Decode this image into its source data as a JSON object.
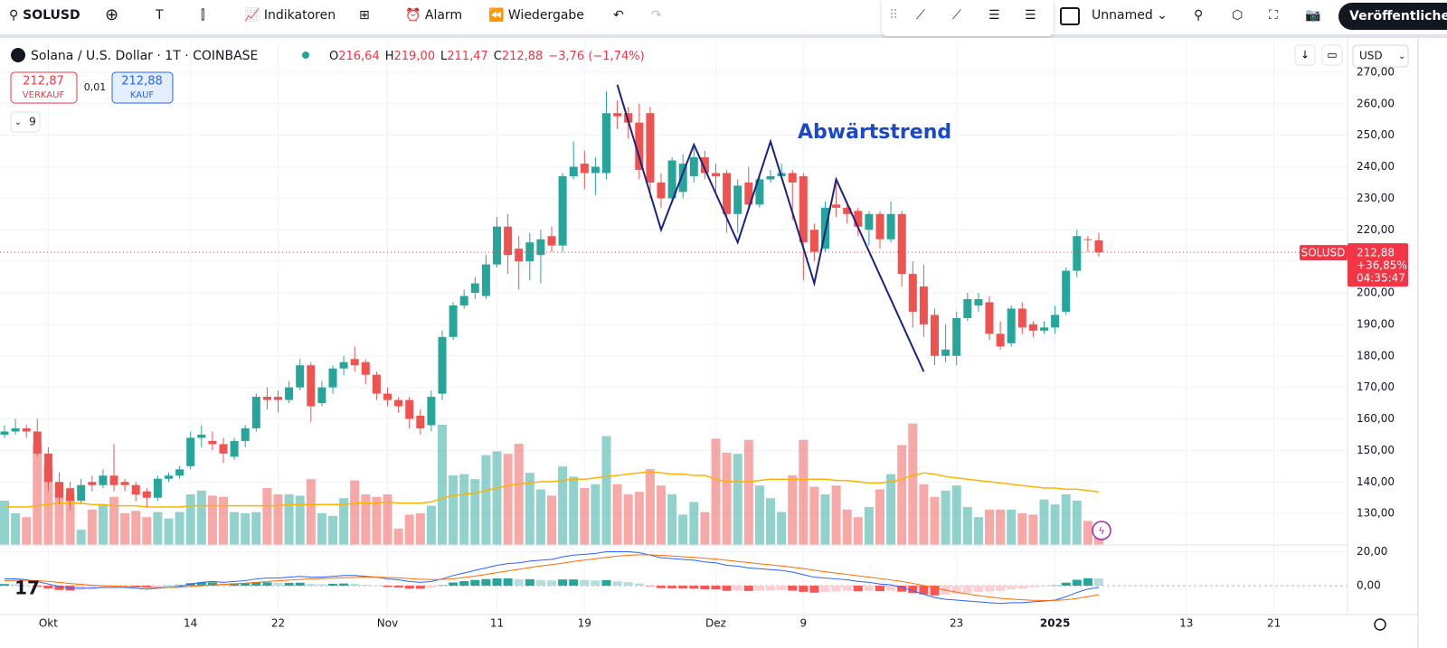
{
  "toolbar": {
    "symbol": "SOLUSD",
    "text_tool": "T",
    "indicators": "Indikatoren",
    "alert": "Alarm",
    "replay": "Wiedergabe",
    "layout_name": "Unnamed",
    "publish": "Veröffentlichen"
  },
  "legend": {
    "symbol_name": "Solana / U.S. Dollar · 1T · COINBASE",
    "o_label": "O",
    "o": "216,64",
    "h_label": "H",
    "h": "219,00",
    "l_label": "L",
    "l": "211,47",
    "c_label": "C",
    "c": "212,88",
    "change": "−3,76 (−1,74%)",
    "sell_price": "212,87",
    "sell": "VERKAUF",
    "spread": "0,01",
    "buy_price": "212,88",
    "buy": "KAUF",
    "indicators_count": "9",
    "currency": "USD"
  },
  "chart_data": {
    "type": "candlestick",
    "x": [
      "2024-09-27",
      "2024-09-28",
      "2024-09-29",
      "2024-09-30",
      "2024-10-01",
      "2024-10-02",
      "2024-10-03",
      "2024-10-04",
      "2024-10-05",
      "2024-10-06",
      "2024-10-07",
      "2024-10-08",
      "2024-10-09",
      "2024-10-10",
      "2024-10-11",
      "2024-10-12",
      "2024-10-13",
      "2024-10-14",
      "2024-10-15",
      "2024-10-16",
      "2024-10-17",
      "2024-10-18",
      "2024-10-19",
      "2024-10-20",
      "2024-10-21",
      "2024-10-22",
      "2024-10-23",
      "2024-10-24",
      "2024-10-25",
      "2024-10-26",
      "2024-10-27",
      "2024-10-28",
      "2024-10-29",
      "2024-10-30",
      "2024-10-31",
      "2024-11-01",
      "2024-11-02",
      "2024-11-03",
      "2024-11-04",
      "2024-11-05",
      "2024-11-06",
      "2024-11-07",
      "2024-11-08",
      "2024-11-09",
      "2024-11-10",
      "2024-11-11",
      "2024-11-12",
      "2024-11-13",
      "2024-11-14",
      "2024-11-15",
      "2024-11-16",
      "2024-11-17",
      "2024-11-18",
      "2024-11-19",
      "2024-11-20",
      "2024-11-21",
      "2024-11-22",
      "2024-11-23",
      "2024-11-24",
      "2024-11-25",
      "2024-11-26",
      "2024-11-27",
      "2024-11-28",
      "2024-11-29",
      "2024-11-30",
      "2024-12-01",
      "2024-12-02",
      "2024-12-03",
      "2024-12-04",
      "2024-12-05",
      "2024-12-06",
      "2024-12-07",
      "2024-12-08",
      "2024-12-09",
      "2024-12-10",
      "2024-12-11",
      "2024-12-12",
      "2024-12-13",
      "2024-12-14",
      "2024-12-15",
      "2024-12-16",
      "2024-12-17",
      "2024-12-18",
      "2024-12-19",
      "2024-12-20",
      "2024-12-21",
      "2024-12-22",
      "2024-12-23",
      "2024-12-24",
      "2024-12-25",
      "2024-12-26",
      "2024-12-27",
      "2024-12-28",
      "2024-12-29",
      "2024-12-30",
      "2024-12-31",
      "2025-01-01",
      "2025-01-02",
      "2025-01-03",
      "2025-01-04",
      "2025-01-05"
    ],
    "open": [
      155,
      156,
      157,
      156,
      149,
      140,
      138,
      134,
      140,
      139,
      142,
      140,
      139,
      137,
      135,
      141,
      142,
      145,
      154,
      153,
      152,
      148,
      153,
      157,
      167,
      167,
      166,
      170,
      177,
      165,
      170,
      176,
      179,
      178,
      174,
      168,
      166,
      166,
      161,
      158,
      168,
      186,
      196,
      200,
      199,
      209,
      221,
      214,
      210,
      212,
      218,
      215,
      237,
      241,
      238,
      238,
      257,
      257,
      254,
      257,
      235,
      230,
      232,
      237,
      243,
      238,
      238,
      225,
      235,
      228,
      236,
      237,
      238,
      237,
      220,
      214,
      228,
      227,
      226,
      220,
      225,
      217,
      225,
      206,
      202,
      193,
      180,
      180,
      192,
      196,
      197,
      187,
      184,
      195,
      190,
      188,
      189,
      194,
      207,
      217,
      216.64
    ],
    "high": [
      158,
      160,
      158,
      160,
      151,
      143,
      140,
      141,
      142,
      144,
      152,
      141,
      140,
      138,
      142,
      143,
      145,
      156,
      158,
      156,
      154,
      154,
      158,
      168,
      170,
      169,
      172,
      179,
      178,
      172,
      177,
      180,
      183,
      179,
      175,
      170,
      167,
      167,
      163,
      169,
      188,
      197,
      201,
      205,
      212,
      224,
      225,
      218,
      219,
      220,
      221,
      238,
      248,
      245,
      243,
      264,
      261,
      259,
      260,
      259,
      238,
      243,
      244,
      246,
      245,
      241,
      239,
      236,
      240,
      238,
      239,
      241,
      239,
      238,
      222,
      229,
      235,
      228,
      227,
      226,
      226,
      229,
      226,
      210,
      209,
      195,
      190,
      194,
      200,
      200,
      199,
      191,
      196,
      197,
      191,
      191,
      196,
      208,
      220,
      218,
      219
    ],
    "low": [
      154,
      155,
      154,
      148,
      137,
      133,
      131,
      133,
      137,
      138,
      137,
      137,
      134,
      132,
      134,
      140,
      141,
      144,
      151,
      150,
      146,
      147,
      151,
      156,
      163,
      162,
      165,
      169,
      159,
      164,
      168,
      174,
      175,
      171,
      166,
      164,
      162,
      157,
      155,
      156,
      166,
      185,
      195,
      198,
      198,
      208,
      206,
      201,
      204,
      203,
      213,
      213,
      236,
      233,
      231,
      236,
      252,
      249,
      236,
      230,
      227,
      229,
      230,
      235,
      236,
      232,
      219,
      219,
      226,
      227,
      235,
      236,
      223,
      204,
      210,
      213,
      224,
      222,
      218,
      215,
      214,
      216,
      202,
      189,
      186,
      177,
      178,
      177,
      191,
      194,
      185,
      182,
      183,
      187,
      186,
      187,
      187,
      193,
      205,
      213,
      211.47
    ],
    "close": [
      156,
      157,
      156,
      149,
      140,
      135,
      134,
      139,
      139,
      142,
      139,
      139,
      136,
      135,
      141,
      142,
      144,
      154,
      155,
      152,
      149,
      153,
      157,
      167,
      166,
      166,
      170,
      177,
      164,
      170,
      176,
      178,
      177,
      174,
      168,
      166,
      164,
      160,
      157,
      167,
      186,
      196,
      199,
      203,
      209,
      221,
      212,
      210,
      216,
      217,
      215,
      237,
      240,
      238,
      240,
      257,
      256,
      254,
      239,
      235,
      230,
      242,
      241,
      243,
      238,
      237,
      225,
      234,
      228,
      236,
      237,
      238,
      235,
      216,
      213,
      227,
      227,
      225,
      221,
      225,
      217,
      225,
      206,
      194,
      190,
      180,
      182,
      192,
      198,
      198,
      187,
      183,
      195,
      189,
      188,
      189,
      193,
      207,
      218,
      217,
      212.88
    ],
    "volume": [
      35,
      25,
      22,
      80,
      62,
      48,
      40,
      12,
      28,
      32,
      38,
      25,
      27,
      22,
      26,
      21,
      26,
      40,
      43,
      39,
      38,
      26,
      25,
      26,
      45,
      40,
      40,
      39,
      52,
      25,
      23,
      37,
      51,
      40,
      38,
      40,
      13,
      24,
      25,
      31,
      95,
      55,
      56,
      52,
      71,
      74,
      72,
      80,
      57,
      44,
      39,
      62,
      54,
      45,
      48,
      86,
      48,
      40,
      42,
      60,
      47,
      40,
      24,
      34,
      26,
      84,
      73,
      72,
      83,
      47,
      37,
      26,
      55,
      83,
      46,
      40,
      47,
      28,
      22,
      30,
      44,
      56,
      79,
      96,
      48,
      38,
      43,
      47,
      30,
      22,
      28,
      28,
      28,
      25,
      24,
      36,
      32,
      40,
      35,
      19,
      17
    ],
    "volume_ma": [
      30,
      30,
      30,
      31,
      32,
      33,
      33,
      33,
      32,
      32,
      31,
      31,
      31,
      30,
      30,
      30,
      30,
      31,
      31,
      31,
      31,
      31,
      31,
      31,
      31,
      31,
      32,
      32,
      32,
      32,
      32,
      32,
      33,
      33,
      33,
      34,
      33,
      33,
      33,
      34,
      37,
      39,
      40,
      41,
      43,
      45,
      47,
      48,
      49,
      50,
      50,
      51,
      52,
      52,
      53,
      54,
      55,
      56,
      57,
      58,
      57,
      56,
      56,
      55,
      55,
      52,
      50,
      50,
      50,
      51,
      52,
      52,
      52,
      52,
      52,
      52,
      51,
      51,
      50,
      49,
      49,
      50,
      52,
      55,
      57,
      56,
      54,
      53,
      52,
      51,
      50,
      49,
      48,
      47,
      46,
      45,
      45,
      44,
      44,
      43,
      42
    ],
    "macd": [
      4,
      4,
      3.5,
      2.5,
      1,
      -0.5,
      -1.5,
      -1.5,
      -1.5,
      -1,
      -1,
      -1,
      -1.5,
      -2,
      -1.5,
      -1,
      -0.5,
      1,
      2,
      2.5,
      2,
      2.5,
      3,
      4,
      4.5,
      4.5,
      5,
      5.5,
      5,
      5,
      5.5,
      6,
      6,
      5.5,
      5,
      4,
      3.5,
      2.5,
      2,
      2.5,
      4,
      6,
      7.5,
      9,
      10.5,
      12,
      13,
      13.5,
      14.5,
      15,
      15.5,
      17,
      18,
      18.5,
      19,
      20,
      20,
      20,
      19.5,
      18,
      16.5,
      16,
      15.5,
      15,
      14,
      13.5,
      12,
      11.5,
      10.5,
      10,
      9.5,
      9,
      8,
      6.5,
      5,
      4.5,
      4,
      3.5,
      2.5,
      2,
      1,
      0.5,
      -1,
      -3,
      -5,
      -7,
      -8,
      -8.5,
      -9,
      -9.5,
      -10,
      -10.5,
      -10,
      -10,
      -9.5,
      -9,
      -8.5,
      -6.5,
      -4,
      -2,
      -1
    ],
    "signal": [
      3,
      3.2,
      3.2,
      3,
      2.6,
      2,
      1.3,
      0.8,
      0.3,
      0,
      -0.2,
      -0.4,
      -0.6,
      -0.9,
      -1,
      -1,
      -0.9,
      -0.5,
      0,
      0.5,
      0.8,
      1.1,
      1.5,
      2,
      2.5,
      2.9,
      3.3,
      3.7,
      4,
      4.2,
      4.4,
      4.7,
      4.9,
      5,
      5,
      4.8,
      4.6,
      4.2,
      3.8,
      3.6,
      3.7,
      4.1,
      4.8,
      5.6,
      6.6,
      7.7,
      8.7,
      9.7,
      10.7,
      11.6,
      12.4,
      13.3,
      14.3,
      15.1,
      15.9,
      16.7,
      17.4,
      17.9,
      18.2,
      18.2,
      17.9,
      17.5,
      17.1,
      16.7,
      16.2,
      15.7,
      15,
      14.3,
      13.6,
      12.9,
      12.3,
      11.6,
      10.9,
      10.1,
      9.1,
      8.2,
      7.4,
      6.6,
      5.8,
      5,
      4.2,
      3.4,
      2.5,
      1.4,
      0.1,
      -1.3,
      -2.6,
      -3.8,
      -4.8,
      -5.8,
      -6.6,
      -7.4,
      -7.9,
      -8.3,
      -8.6,
      -8.7,
      -8.7,
      -8.3,
      -7.5,
      -6.4,
      -5.3
    ],
    "histogram": [
      1,
      0.8,
      0.3,
      -0.5,
      -1.6,
      -2.5,
      -2.8,
      -2.3,
      -1.8,
      -1,
      -0.8,
      -0.6,
      -0.9,
      -1.1,
      -0.5,
      0,
      0.4,
      1.5,
      2,
      2,
      1.2,
      1.4,
      1.5,
      2,
      2,
      1.6,
      1.7,
      1.8,
      1,
      0.8,
      1.1,
      1.3,
      1.1,
      0.5,
      0,
      -0.8,
      -1.1,
      -1.7,
      -1.8,
      -1.1,
      0.3,
      1.9,
      2.7,
      3.4,
      3.9,
      4.3,
      4.3,
      3.8,
      3.8,
      3.4,
      3.1,
      3.7,
      3.7,
      3.4,
      3.1,
      3.3,
      2.6,
      2.1,
      1.3,
      -0.2,
      -1.4,
      -1.5,
      -1.6,
      -1.7,
      -2.2,
      -2.2,
      -3,
      -2.8,
      -3.1,
      -2.9,
      -2.8,
      -2.6,
      -2.9,
      -3.6,
      -4.1,
      -3.7,
      -3.4,
      -3.1,
      -3.3,
      -3,
      -3.2,
      -2.9,
      -3.5,
      -4.4,
      -5.1,
      -5.7,
      -5.4,
      -4.7,
      -4.2,
      -3.7,
      -3.4,
      -3.1,
      -2.1,
      -1.7,
      -0.9,
      -0.3,
      0.2,
      1.8,
      3.5,
      4.4,
      4.3
    ],
    "xlim": [
      "2024-09-26",
      "2025-01-28"
    ],
    "xticks": [
      {
        "value": "2024-10-01",
        "label": "Okt"
      },
      {
        "value": "2024-10-14",
        "label": "14"
      },
      {
        "value": "2024-10-22",
        "label": "22"
      },
      {
        "value": "2024-11-01",
        "label": "Nov"
      },
      {
        "value": "2024-11-11",
        "label": "11"
      },
      {
        "value": "2024-11-19",
        "label": "19"
      },
      {
        "value": "2024-12-01",
        "label": "Dez"
      },
      {
        "value": "2024-12-09",
        "label": "9"
      },
      {
        "value": "2024-12-23",
        "label": "23"
      },
      {
        "value": "2025-01-01",
        "label": "2025"
      },
      {
        "value": "2025-01-13",
        "label": "13"
      },
      {
        "value": "2025-01-21",
        "label": "21"
      }
    ],
    "ylim": [
      120,
      280
    ],
    "yticks": [
      {
        "value": 130,
        "label": "130,00"
      },
      {
        "value": 140,
        "label": "140,00"
      },
      {
        "value": 150,
        "label": "150,00"
      },
      {
        "value": 160,
        "label": "160,00"
      },
      {
        "value": 170,
        "label": "170,00"
      },
      {
        "value": 180,
        "label": "180,00"
      },
      {
        "value": 190,
        "label": "190,00"
      },
      {
        "value": 200,
        "label": "200,00"
      },
      {
        "value": 210,
        "label": "210,00"
      },
      {
        "value": 220,
        "label": "220,00"
      },
      {
        "value": 230,
        "label": "230,00"
      },
      {
        "value": 240,
        "label": "240,00"
      },
      {
        "value": 250,
        "label": "250,00"
      },
      {
        "value": 260,
        "label": "260,00"
      },
      {
        "value": 270,
        "label": "270,00"
      }
    ],
    "volume_lim": [
      0,
      100
    ],
    "macd_ylim": [
      -17,
      24
    ],
    "macd_yticks": [
      {
        "value": 0,
        "label": "0,00"
      },
      {
        "value": 20,
        "label": "20,00"
      }
    ],
    "grid": true,
    "colors": {
      "up": "#26a69a",
      "down": "#ef5350",
      "volume_ma": "#ffb300",
      "macd": "#2962ff",
      "signal": "#ff6d00",
      "hist_up": "#26a69a",
      "hist_up_fading": "#b2dfdb",
      "hist_down": "#ff5252",
      "hist_down_fading": "#ffcdd2",
      "trendline": "#1a237e"
    },
    "trendline": {
      "x": [
        "2024-11-22",
        "2024-11-26",
        "2024-11-29",
        "2024-12-03",
        "2024-12-06",
        "2024-12-10",
        "2024-12-12",
        "2024-12-20"
      ],
      "y": [
        266,
        220,
        247,
        216,
        248,
        203,
        236,
        175
      ]
    },
    "annotation": "Abwärtstrend",
    "last_price": {
      "value": 212.88,
      "label": "212,88",
      "symbol": "SOLUSD",
      "change": "+36,85%",
      "countdown": "04:35:47"
    }
  }
}
